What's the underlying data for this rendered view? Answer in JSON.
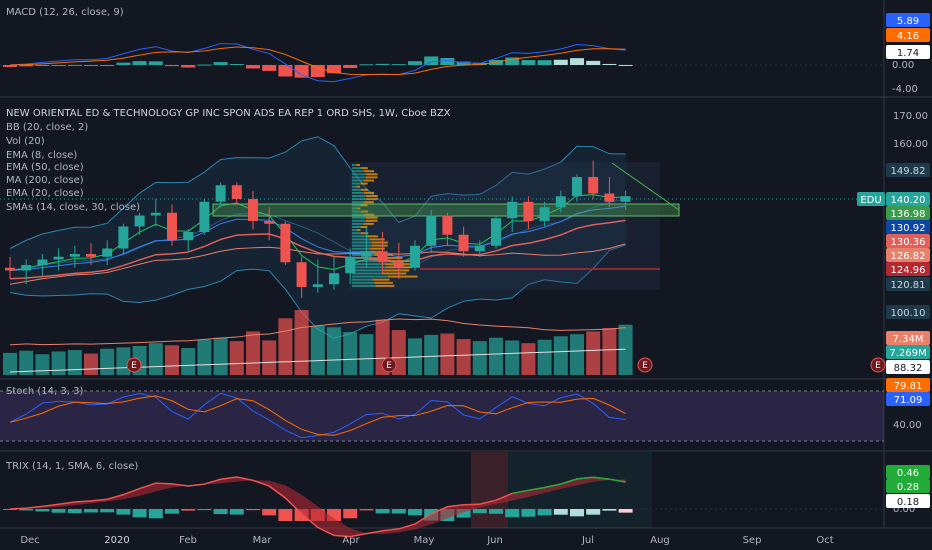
{
  "macd_pane": {
    "header": "MACD (12, 26, close, 9)",
    "axis_ticks": [
      "0.00",
      "-4.00"
    ],
    "tags": [
      {
        "label": "5.89",
        "color": "#2962ff",
        "text": "#ffffff"
      },
      {
        "label": "4.16",
        "color": "#ff6d00",
        "text": "#ffffff"
      },
      {
        "label": "1.74",
        "color": "#ffffff",
        "text": "#131722"
      }
    ]
  },
  "main_pane": {
    "title": "NEW ORIENTAL ED & TECHNOLOGY GP INC SPON ADS EA REP 1 ORD SHS, 1W, Cboe BZX",
    "indicators": [
      "BB (20, close, 2)",
      "Vol (20)",
      "EMA (8, close)",
      "EMA (50, close)",
      "MA (200, close)",
      "EMA (20, close)",
      "SMAs (14, close, 30, close)"
    ],
    "axis_ticks": [
      "170.00",
      "160.00"
    ],
    "symbol": "EDU",
    "tags": [
      {
        "label": "149.82",
        "color": "#1c3a4a",
        "text": "#d1d4dc"
      },
      {
        "label": "140.20",
        "color": "#26a69a",
        "text": "#ffffff"
      },
      {
        "label": "136.98",
        "color": "#3a9b4a",
        "text": "#ffffff"
      },
      {
        "label": "130.92",
        "color": "#0d47a1",
        "text": "#ffffff"
      },
      {
        "label": "130.36",
        "color": "#e0605a",
        "text": "#ffffff"
      },
      {
        "label": "126.82",
        "color": "#e8806a",
        "text": "#ffffff"
      },
      {
        "label": "124.96",
        "color": "#b22833",
        "text": "#ffffff"
      },
      {
        "label": "120.81",
        "color": "#1c3a4a",
        "text": "#d1d4dc"
      },
      {
        "label": "100.10",
        "color": "#1c3a4a",
        "text": "#d1d4dc"
      },
      {
        "label": "7.34M",
        "color": "#e8806a",
        "text": "#ffffff"
      },
      {
        "label": "7.269M",
        "color": "#26a69a",
        "text": "#ffffff"
      },
      {
        "label": "88.32",
        "color": "#ffffff",
        "text": "#131722"
      }
    ],
    "earnings_marker": "E"
  },
  "stoch_pane": {
    "header": "Stoch (14, 3, 3)",
    "axis_ticks": [
      "40.00"
    ],
    "tags": [
      {
        "label": "79.81",
        "color": "#ff6d00",
        "text": "#ffffff"
      },
      {
        "label": "71.09",
        "color": "#2962ff",
        "text": "#ffffff"
      }
    ]
  },
  "trix_pane": {
    "header": "TRIX (14, 1, SMA, 6, close)",
    "axis_ticks": [
      "0.00"
    ],
    "tags": [
      {
        "label": "0.46",
        "color": "#22ab38",
        "text": "#ffffff"
      },
      {
        "label": "0.28",
        "color": "#22ab38",
        "text": "#ffffff"
      },
      {
        "label": "0.18",
        "color": "#ffffff",
        "text": "#131722"
      }
    ]
  },
  "time_axis": [
    "Dec",
    "2020",
    "Feb",
    "Mar",
    "Apr",
    "May",
    "Jun",
    "Jul",
    "Aug",
    "Sep",
    "Oct"
  ],
  "colors": {
    "up": "#26a69a",
    "down": "#ef5350",
    "background": "#131722",
    "grid": "#1e222d"
  },
  "chart_data": {
    "type": "candlestick",
    "interval": "1W",
    "candles": [
      {
        "o": 114,
        "h": 118,
        "l": 110,
        "c": 113
      },
      {
        "o": 113,
        "h": 117,
        "l": 108,
        "c": 115
      },
      {
        "o": 115,
        "h": 119,
        "l": 111,
        "c": 117
      },
      {
        "o": 117,
        "h": 121,
        "l": 113,
        "c": 118
      },
      {
        "o": 118,
        "h": 122,
        "l": 114,
        "c": 119
      },
      {
        "o": 119,
        "h": 123,
        "l": 115,
        "c": 118
      },
      {
        "o": 118,
        "h": 124,
        "l": 115,
        "c": 121
      },
      {
        "o": 121,
        "h": 130,
        "l": 119,
        "c": 129
      },
      {
        "o": 129,
        "h": 134,
        "l": 126,
        "c": 133
      },
      {
        "o": 133,
        "h": 139,
        "l": 129,
        "c": 134
      },
      {
        "o": 134,
        "h": 137,
        "l": 122,
        "c": 124
      },
      {
        "o": 124,
        "h": 128,
        "l": 120,
        "c": 127
      },
      {
        "o": 127,
        "h": 139,
        "l": 126,
        "c": 138
      },
      {
        "o": 138,
        "h": 145,
        "l": 136,
        "c": 144
      },
      {
        "o": 144,
        "h": 145,
        "l": 137,
        "c": 139
      },
      {
        "o": 139,
        "h": 142,
        "l": 128,
        "c": 131
      },
      {
        "o": 131,
        "h": 136,
        "l": 124,
        "c": 130
      },
      {
        "o": 130,
        "h": 131,
        "l": 115,
        "c": 116
      },
      {
        "o": 116,
        "h": 118,
        "l": 103,
        "c": 107
      },
      {
        "o": 107,
        "h": 117,
        "l": 105,
        "c": 108
      },
      {
        "o": 108,
        "h": 118,
        "l": 106,
        "c": 112
      },
      {
        "o": 112,
        "h": 121,
        "l": 108,
        "c": 118
      },
      {
        "o": 118,
        "h": 129,
        "l": 114,
        "c": 120
      },
      {
        "o": 120,
        "h": 127,
        "l": 112,
        "c": 116
      },
      {
        "o": 116,
        "h": 123,
        "l": 110,
        "c": 114
      },
      {
        "o": 114,
        "h": 124,
        "l": 113,
        "c": 122
      },
      {
        "o": 122,
        "h": 135,
        "l": 120,
        "c": 133
      },
      {
        "o": 133,
        "h": 134,
        "l": 122,
        "c": 126
      },
      {
        "o": 126,
        "h": 129,
        "l": 118,
        "c": 120
      },
      {
        "o": 120,
        "h": 124,
        "l": 118,
        "c": 122
      },
      {
        "o": 122,
        "h": 133,
        "l": 121,
        "c": 132
      },
      {
        "o": 132,
        "h": 140,
        "l": 127,
        "c": 138
      },
      {
        "o": 138,
        "h": 140,
        "l": 128,
        "c": 131
      },
      {
        "o": 131,
        "h": 138,
        "l": 129,
        "c": 136
      },
      {
        "o": 136,
        "h": 142,
        "l": 134,
        "c": 140
      },
      {
        "o": 140,
        "h": 148,
        "l": 138,
        "c": 147
      },
      {
        "o": 147,
        "h": 153,
        "l": 139,
        "c": 141
      },
      {
        "o": 141,
        "h": 147,
        "l": 136,
        "c": 138
      },
      {
        "o": 138,
        "h": 142,
        "l": 135,
        "c": 140
      }
    ],
    "volume": [
      3.2,
      3.5,
      3.0,
      3.4,
      3.6,
      3.1,
      3.8,
      4.0,
      4.2,
      4.6,
      4.3,
      3.9,
      5.1,
      5.4,
      4.9,
      6.3,
      5.0,
      8.2,
      9.4,
      7.1,
      6.9,
      6.2,
      5.9,
      8.0,
      6.5,
      5.3,
      5.8,
      6.0,
      5.2,
      4.9,
      5.4,
      5.0,
      4.6,
      5.1,
      5.6,
      5.9,
      6.3,
      6.8,
      7.27
    ],
    "volume_up": [
      true,
      true,
      true,
      true,
      true,
      false,
      true,
      true,
      true,
      true,
      false,
      true,
      true,
      true,
      false,
      false,
      false,
      false,
      false,
      true,
      true,
      true,
      true,
      false,
      false,
      true,
      true,
      false,
      false,
      true,
      true,
      true,
      false,
      true,
      true,
      true,
      false,
      false,
      true
    ],
    "volume_unit": "M",
    "price_range": [
      95,
      175
    ]
  }
}
